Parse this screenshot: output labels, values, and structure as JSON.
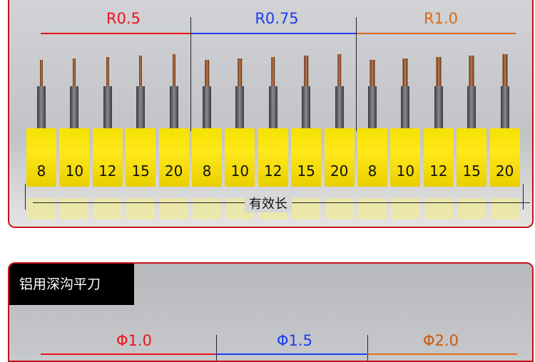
{
  "top_section": {
    "groups": [
      {
        "label": "R0.5",
        "color": "#e8141c",
        "lengths": [
          "8",
          "10",
          "12",
          "15",
          "20"
        ]
      },
      {
        "label": "R0.75",
        "color": "#1a3cf0",
        "lengths": [
          "8",
          "10",
          "12",
          "15",
          "20"
        ]
      },
      {
        "label": "R1.0",
        "color": "#d86a1a",
        "lengths": [
          "8",
          "10",
          "12",
          "15",
          "20"
        ]
      }
    ],
    "effective_length_label": "有效长"
  },
  "bottom_section": {
    "title": "铝用深沟平刀",
    "groups": [
      {
        "label": "Φ1.0",
        "color": "#e8141c"
      },
      {
        "label": "Φ1.5",
        "color": "#1a3cf0"
      },
      {
        "label": "Φ2.0",
        "color": "#c85a10"
      }
    ]
  }
}
